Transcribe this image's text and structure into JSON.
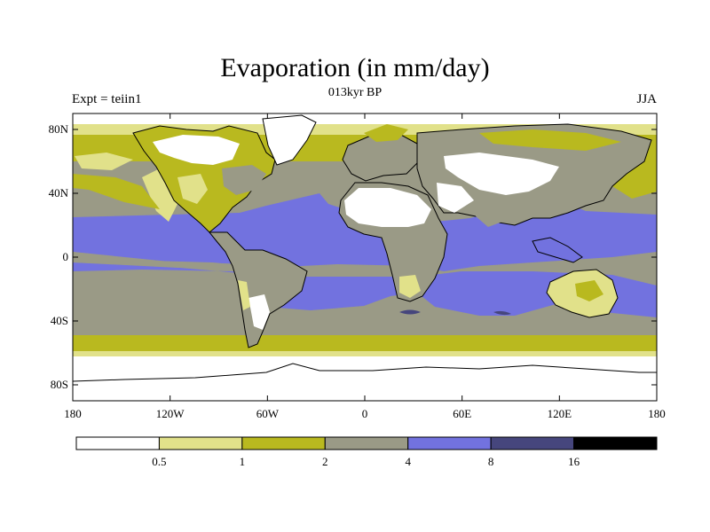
{
  "title": "Evaporation (in mm/day)",
  "subtitle": "013kyr BP",
  "left_label": "Expt = teiin1",
  "right_label": "JJA",
  "x_ticks": [
    {
      "lon": -180,
      "label": "180"
    },
    {
      "lon": -120,
      "label": "120W"
    },
    {
      "lon": -60,
      "label": "60W"
    },
    {
      "lon": 0,
      "label": "0"
    },
    {
      "lon": 60,
      "label": "60E"
    },
    {
      "lon": 120,
      "label": "120E"
    },
    {
      "lon": 180,
      "label": "180"
    }
  ],
  "y_ticks": [
    {
      "lat": 80,
      "label": "80N"
    },
    {
      "lat": 40,
      "label": "40N"
    },
    {
      "lat": 0,
      "label": "0"
    },
    {
      "lat": -40,
      "label": "40S"
    },
    {
      "lat": -80,
      "label": "80S"
    }
  ],
  "colorbar": {
    "colors": [
      "#ffffff",
      "#e1e18a",
      "#b9b91f",
      "#9a9a86",
      "#7272df",
      "#46467d",
      "#000000"
    ],
    "labels": [
      "0.5",
      "1",
      "2",
      "4",
      "8",
      "16"
    ]
  },
  "colors": {
    "white": "#ffffff",
    "light_yellow": "#e1e18a",
    "olive": "#b9b91f",
    "gray": "#9a9a86",
    "blue": "#7272df",
    "dark_blue": "#46467d",
    "black": "#000000"
  }
}
